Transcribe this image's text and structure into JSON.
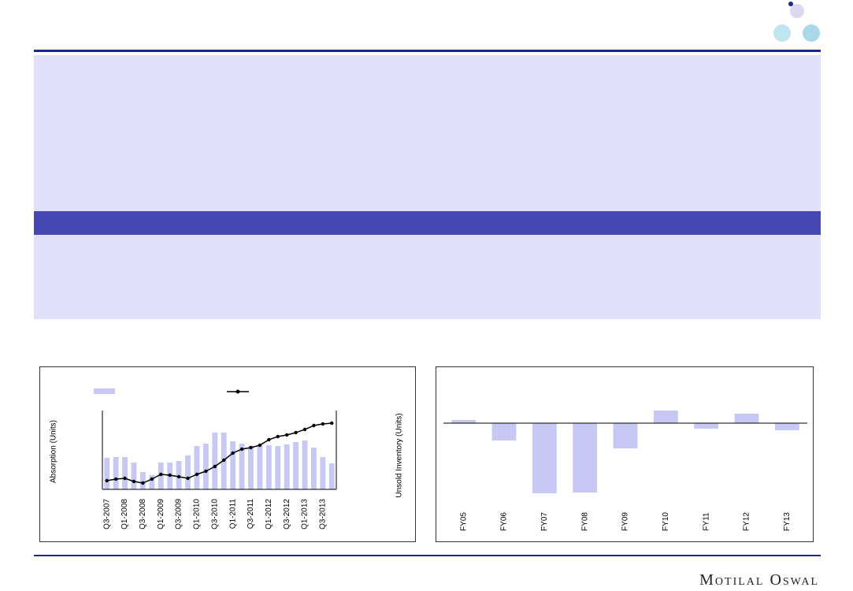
{
  "chart_data": [
    {
      "type": "combo",
      "categories": [
        "Q3-2007",
        null,
        "Q1-2008",
        null,
        "Q3-2008",
        null,
        "Q1-2009",
        null,
        "Q3-2009",
        null,
        "Q1-2010",
        null,
        "Q3-2010",
        null,
        "Q1-2011",
        null,
        "Q3-2011",
        null,
        "Q1-2012",
        null,
        "Q3-2012",
        null,
        "Q1-2013",
        null,
        "Q3-2013",
        null
      ],
      "series": [
        {
          "kind": "bar",
          "color": "#c8c8f5",
          "values": [
            40,
            41,
            41,
            34,
            22,
            18,
            34,
            34,
            36,
            43,
            55,
            58,
            72,
            72,
            61,
            58,
            55,
            57,
            56,
            55,
            57,
            60,
            62,
            53,
            41,
            33
          ]
        },
        {
          "kind": "line",
          "color": "#000000",
          "values": [
            11,
            13,
            14,
            10,
            8,
            13,
            19,
            18,
            16,
            14,
            19,
            23,
            29,
            37,
            46,
            51,
            53,
            56,
            63,
            67,
            69,
            72,
            76,
            81,
            83,
            84
          ]
        }
      ],
      "y_label": "Absorption (Units)",
      "ylim": [
        0,
        100
      ]
    },
    {
      "type": "bar",
      "categories": [
        "FY05",
        "FY06",
        "FY07",
        "FY08",
        "FY09",
        "FY10",
        "FY11",
        "FY12",
        "FY13"
      ],
      "values": [
        4,
        -22,
        -89,
        -88,
        -32,
        16,
        -7,
        12,
        -9
      ],
      "color": "#c8c8f5",
      "y_label": "Unsold Inventory (Units)",
      "ylim": [
        -100,
        30
      ]
    }
  ],
  "footer": {
    "brand": "Motilal Oswal"
  }
}
